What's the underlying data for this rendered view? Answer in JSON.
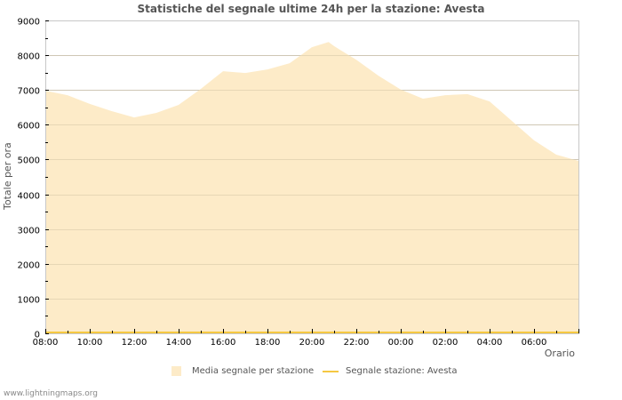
{
  "title": "Statistiche del segnale ultime 24h per la stazione: Avesta",
  "watermark": "www.lightningmaps.org",
  "legend": {
    "items": [
      {
        "label": "Media segnale per stazione",
        "type": "area",
        "color": "#fdebc8"
      },
      {
        "label": "Segnale stazione: Avesta",
        "type": "line",
        "color": "#f5c842"
      }
    ]
  },
  "chart_data": {
    "type": "area",
    "title": "Statistiche del segnale ultime 24h per la stazione: Avesta",
    "xlabel": "Orario",
    "ylabel": "Totale per ora",
    "ylim": [
      0,
      9000
    ],
    "yticks": [
      0,
      1000,
      2000,
      3000,
      4000,
      5000,
      6000,
      7000,
      8000,
      9000
    ],
    "xticks": [
      "08:00",
      "10:00",
      "12:00",
      "14:00",
      "16:00",
      "18:00",
      "20:00",
      "22:00",
      "00:00",
      "02:00",
      "04:00",
      "06:00"
    ],
    "grid": true,
    "legend_position": "bottom",
    "x": [
      "08:00",
      "09:00",
      "10:00",
      "11:00",
      "12:00",
      "13:00",
      "14:00",
      "15:00",
      "16:00",
      "17:00",
      "18:00",
      "19:00",
      "20:00",
      "20:45",
      "21:00",
      "22:00",
      "23:00",
      "00:00",
      "01:00",
      "02:00",
      "03:00",
      "04:00",
      "05:00",
      "06:00",
      "07:00",
      "08:00"
    ],
    "series": [
      {
        "name": "Media segnale per stazione",
        "type": "area",
        "color": "#fdebc8",
        "values": [
          6980,
          6850,
          6600,
          6390,
          6210,
          6340,
          6570,
          7030,
          7540,
          7490,
          7590,
          7770,
          8230,
          8380,
          8260,
          7870,
          7410,
          7010,
          6750,
          6850,
          6880,
          6670,
          6110,
          5550,
          5140,
          4960
        ]
      },
      {
        "name": "Segnale stazione: Avesta",
        "type": "line",
        "color": "#f5c842",
        "values": [
          0,
          0,
          0,
          0,
          0,
          0,
          0,
          0,
          0,
          0,
          0,
          0,
          0,
          0,
          0,
          0,
          0,
          0,
          0,
          0,
          0,
          0,
          0,
          0,
          0,
          0
        ]
      }
    ],
    "x_positions_hours": [
      0,
      1,
      2,
      3,
      4,
      5,
      6,
      7,
      8,
      9,
      10,
      11,
      12,
      12.75,
      13,
      14,
      15,
      16,
      17,
      18,
      19,
      20,
      21,
      22,
      23,
      24
    ]
  }
}
